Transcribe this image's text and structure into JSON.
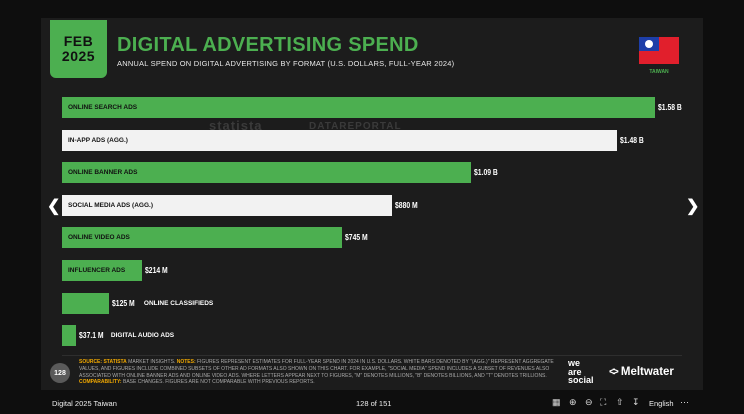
{
  "slide": {
    "date_month": "FEB",
    "date_year": "2025",
    "title": "DIGITAL ADVERTISING SPEND",
    "subtitle": "ANNUAL SPEND ON DIGITAL ADVERTISING BY FORMAT (U.S. DOLLARS, FULL-YEAR 2024)",
    "country": "TAIWAN",
    "watermark_left": "statista",
    "watermark_right": "DATAREPORTAL",
    "page_number": "128",
    "colors": {
      "green": "#4caf50",
      "white_bar": "#f2f2f2",
      "background": "#1c1c1c",
      "accent": "#f2a900"
    }
  },
  "chart_data": {
    "type": "bar",
    "orientation": "horizontal",
    "categories": [
      "ONLINE SEARCH ADS",
      "IN-APP ADS (AGG.)",
      "ONLINE BANNER ADS",
      "SOCIAL MEDIA ADS (AGG.)",
      "ONLINE VIDEO ADS",
      "INFLUENCER ADS",
      "ONLINE CLASSIFIEDS",
      "DIGITAL AUDIO ADS"
    ],
    "values": [
      1580000000,
      1480000000,
      1090000000,
      880000000,
      745000000,
      214000000,
      125000000,
      37100000
    ],
    "value_labels": [
      "$1.58 B",
      "$1.48 B",
      "$1.09 B",
      "$880 M",
      "$745 M",
      "$214 M",
      "$125 M",
      "$37.1 M"
    ],
    "aggregate": [
      false,
      true,
      false,
      true,
      false,
      false,
      false,
      false
    ],
    "xlim": [
      0,
      1580000000
    ]
  },
  "footer": {
    "source_label": "SOURCE:",
    "source_name": "STATISTA",
    "source_text": " MARKET INSIGHTS. ",
    "notes_label": "NOTES:",
    "notes_text": " FIGURES REPRESENT ESTIMATES FOR FULL-YEAR SPEND IN 2024 IN U.S. DOLLARS. WHITE BARS DENOTED BY \"(AGG.)\" REPRESENT AGGREGATE VALUES, AND FIGURES INCLUDE COMBINED SUBSETS OF OTHER AD FORMATS ALSO SHOWN ON THIS CHART. FOR EXAMPLE, \"SOCIAL MEDIA\" SPEND INCLUDES A SUBSET OF REVENUES ALSO ASSOCIATED WITH ONLINE BANNER ADS AND ONLINE VIDEO ADS. WHERE LETTERS APPEAR NEXT TO FIGURES, \"M\" DENOTES MILLIONS, \"B\" DENOTES BILLIONS, AND \"T\" DENOTES TRILLIONS. ",
    "comparability_label": "COMPARABILITY:",
    "comparability_text": " BASE CHANGES. FIGURES ARE NOT COMPARABLE WITH PREVIOUS REPORTS.",
    "brand1_line1": "we",
    "brand1_line2": "are",
    "brand1_line3": "social",
    "brand2": "Meltwater"
  },
  "viewer": {
    "doc_title": "Digital 2025 Taiwan",
    "page_indicator": "128 of 151",
    "language": "English",
    "prev_icon": "chevron-left-icon",
    "next_icon": "chevron-right-icon"
  }
}
